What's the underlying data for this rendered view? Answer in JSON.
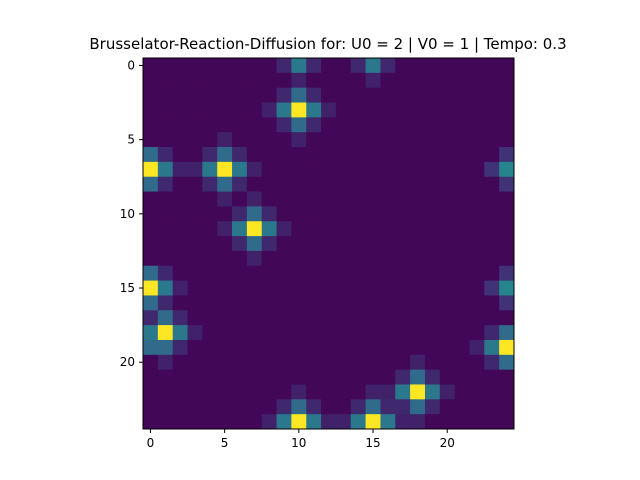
{
  "chart_data": {
    "type": "heatmap",
    "title": "Brusselator-Reaction-Diffusion for: U0 = 2 | V0 = 1 | Tempo: 0.3",
    "xlabel": "",
    "ylabel": "",
    "rows": 25,
    "cols": 25,
    "x_ticks": [
      0,
      5,
      10,
      15,
      20
    ],
    "y_ticks": [
      0,
      5,
      10,
      15,
      20
    ],
    "colormap": "viridis",
    "vmin": 0,
    "vmax": 1,
    "grid": false,
    "colorbar": false,
    "background_level": 0.02,
    "points": [
      {
        "row": 0,
        "col": 10,
        "value": 0.4
      },
      {
        "row": 0,
        "col": 15,
        "value": 0.4
      },
      {
        "row": 0,
        "col": 9,
        "value": 0.12
      },
      {
        "row": 0,
        "col": 11,
        "value": 0.12
      },
      {
        "row": 0,
        "col": 14,
        "value": 0.12
      },
      {
        "row": 0,
        "col": 16,
        "value": 0.12
      },
      {
        "row": 1,
        "col": 10,
        "value": 0.1
      },
      {
        "row": 1,
        "col": 15,
        "value": 0.1
      },
      {
        "row": 3,
        "col": 10,
        "value": 1.0
      },
      {
        "row": 2,
        "col": 10,
        "value": 0.35
      },
      {
        "row": 4,
        "col": 10,
        "value": 0.35
      },
      {
        "row": 3,
        "col": 9,
        "value": 0.4
      },
      {
        "row": 3,
        "col": 11,
        "value": 0.4
      },
      {
        "row": 2,
        "col": 9,
        "value": 0.12
      },
      {
        "row": 2,
        "col": 11,
        "value": 0.12
      },
      {
        "row": 4,
        "col": 9,
        "value": 0.12
      },
      {
        "row": 4,
        "col": 11,
        "value": 0.12
      },
      {
        "row": 1,
        "col": 10,
        "value": 0.1
      },
      {
        "row": 5,
        "col": 10,
        "value": 0.1
      },
      {
        "row": 3,
        "col": 8,
        "value": 0.1
      },
      {
        "row": 3,
        "col": 12,
        "value": 0.1
      },
      {
        "row": 7,
        "col": 5,
        "value": 1.0
      },
      {
        "row": 6,
        "col": 5,
        "value": 0.35
      },
      {
        "row": 8,
        "col": 5,
        "value": 0.35
      },
      {
        "row": 7,
        "col": 4,
        "value": 0.4
      },
      {
        "row": 7,
        "col": 6,
        "value": 0.4
      },
      {
        "row": 6,
        "col": 4,
        "value": 0.12
      },
      {
        "row": 6,
        "col": 6,
        "value": 0.12
      },
      {
        "row": 8,
        "col": 4,
        "value": 0.12
      },
      {
        "row": 8,
        "col": 6,
        "value": 0.12
      },
      {
        "row": 5,
        "col": 5,
        "value": 0.1
      },
      {
        "row": 9,
        "col": 5,
        "value": 0.1
      },
      {
        "row": 7,
        "col": 3,
        "value": 0.1
      },
      {
        "row": 7,
        "col": 7,
        "value": 0.1
      },
      {
        "row": 7,
        "col": 0,
        "value": 1.0
      },
      {
        "row": 6,
        "col": 0,
        "value": 0.35
      },
      {
        "row": 8,
        "col": 0,
        "value": 0.35
      },
      {
        "row": 7,
        "col": 1,
        "value": 0.4
      },
      {
        "row": 6,
        "col": 1,
        "value": 0.12
      },
      {
        "row": 8,
        "col": 1,
        "value": 0.12
      },
      {
        "row": 7,
        "col": 2,
        "value": 0.1
      },
      {
        "row": 7,
        "col": 24,
        "value": 0.45
      },
      {
        "row": 6,
        "col": 24,
        "value": 0.15
      },
      {
        "row": 8,
        "col": 24,
        "value": 0.15
      },
      {
        "row": 7,
        "col": 23,
        "value": 0.15
      },
      {
        "row": 11,
        "col": 7,
        "value": 1.0
      },
      {
        "row": 10,
        "col": 7,
        "value": 0.35
      },
      {
        "row": 12,
        "col": 7,
        "value": 0.35
      },
      {
        "row": 11,
        "col": 6,
        "value": 0.4
      },
      {
        "row": 11,
        "col": 8,
        "value": 0.4
      },
      {
        "row": 10,
        "col": 6,
        "value": 0.12
      },
      {
        "row": 10,
        "col": 8,
        "value": 0.12
      },
      {
        "row": 12,
        "col": 6,
        "value": 0.12
      },
      {
        "row": 12,
        "col": 8,
        "value": 0.12
      },
      {
        "row": 9,
        "col": 7,
        "value": 0.1
      },
      {
        "row": 13,
        "col": 7,
        "value": 0.1
      },
      {
        "row": 11,
        "col": 5,
        "value": 0.1
      },
      {
        "row": 11,
        "col": 9,
        "value": 0.1
      },
      {
        "row": 15,
        "col": 0,
        "value": 1.0
      },
      {
        "row": 14,
        "col": 0,
        "value": 0.35
      },
      {
        "row": 16,
        "col": 0,
        "value": 0.35
      },
      {
        "row": 15,
        "col": 1,
        "value": 0.4
      },
      {
        "row": 14,
        "col": 1,
        "value": 0.12
      },
      {
        "row": 16,
        "col": 1,
        "value": 0.12
      },
      {
        "row": 15,
        "col": 2,
        "value": 0.1
      },
      {
        "row": 15,
        "col": 24,
        "value": 0.45
      },
      {
        "row": 14,
        "col": 24,
        "value": 0.15
      },
      {
        "row": 16,
        "col": 24,
        "value": 0.15
      },
      {
        "row": 15,
        "col": 23,
        "value": 0.15
      },
      {
        "row": 18,
        "col": 1,
        "value": 1.0
      },
      {
        "row": 17,
        "col": 1,
        "value": 0.35
      },
      {
        "row": 19,
        "col": 1,
        "value": 0.35
      },
      {
        "row": 18,
        "col": 0,
        "value": 0.4
      },
      {
        "row": 18,
        "col": 2,
        "value": 0.4
      },
      {
        "row": 17,
        "col": 0,
        "value": 0.12
      },
      {
        "row": 17,
        "col": 2,
        "value": 0.12
      },
      {
        "row": 19,
        "col": 0,
        "value": 0.35
      },
      {
        "row": 19,
        "col": 2,
        "value": 0.12
      },
      {
        "row": 20,
        "col": 1,
        "value": 0.1
      },
      {
        "row": 18,
        "col": 3,
        "value": 0.1
      },
      {
        "row": 19,
        "col": 24,
        "value": 1.0
      },
      {
        "row": 18,
        "col": 24,
        "value": 0.35
      },
      {
        "row": 20,
        "col": 24,
        "value": 0.35
      },
      {
        "row": 19,
        "col": 23,
        "value": 0.4
      },
      {
        "row": 18,
        "col": 23,
        "value": 0.12
      },
      {
        "row": 20,
        "col": 23,
        "value": 0.12
      },
      {
        "row": 19,
        "col": 22,
        "value": 0.1
      },
      {
        "row": 22,
        "col": 18,
        "value": 1.0
      },
      {
        "row": 21,
        "col": 18,
        "value": 0.35
      },
      {
        "row": 23,
        "col": 18,
        "value": 0.35
      },
      {
        "row": 22,
        "col": 17,
        "value": 0.4
      },
      {
        "row": 22,
        "col": 19,
        "value": 0.4
      },
      {
        "row": 21,
        "col": 17,
        "value": 0.12
      },
      {
        "row": 21,
        "col": 19,
        "value": 0.12
      },
      {
        "row": 23,
        "col": 17,
        "value": 0.12
      },
      {
        "row": 23,
        "col": 19,
        "value": 0.12
      },
      {
        "row": 20,
        "col": 18,
        "value": 0.1
      },
      {
        "row": 24,
        "col": 18,
        "value": 0.1
      },
      {
        "row": 22,
        "col": 16,
        "value": 0.1
      },
      {
        "row": 22,
        "col": 20,
        "value": 0.1
      },
      {
        "row": 24,
        "col": 10,
        "value": 1.0
      },
      {
        "row": 23,
        "col": 10,
        "value": 0.35
      },
      {
        "row": 24,
        "col": 9,
        "value": 0.4
      },
      {
        "row": 24,
        "col": 11,
        "value": 0.4
      },
      {
        "row": 23,
        "col": 9,
        "value": 0.12
      },
      {
        "row": 23,
        "col": 11,
        "value": 0.12
      },
      {
        "row": 22,
        "col": 10,
        "value": 0.1
      },
      {
        "row": 24,
        "col": 8,
        "value": 0.1
      },
      {
        "row": 24,
        "col": 12,
        "value": 0.1
      },
      {
        "row": 24,
        "col": 15,
        "value": 1.0
      },
      {
        "row": 23,
        "col": 15,
        "value": 0.35
      },
      {
        "row": 24,
        "col": 14,
        "value": 0.4
      },
      {
        "row": 24,
        "col": 16,
        "value": 0.4
      },
      {
        "row": 23,
        "col": 14,
        "value": 0.12
      },
      {
        "row": 23,
        "col": 16,
        "value": 0.12
      },
      {
        "row": 22,
        "col": 15,
        "value": 0.1
      },
      {
        "row": 24,
        "col": 13,
        "value": 0.1
      },
      {
        "row": 24,
        "col": 17,
        "value": 0.1
      }
    ]
  }
}
